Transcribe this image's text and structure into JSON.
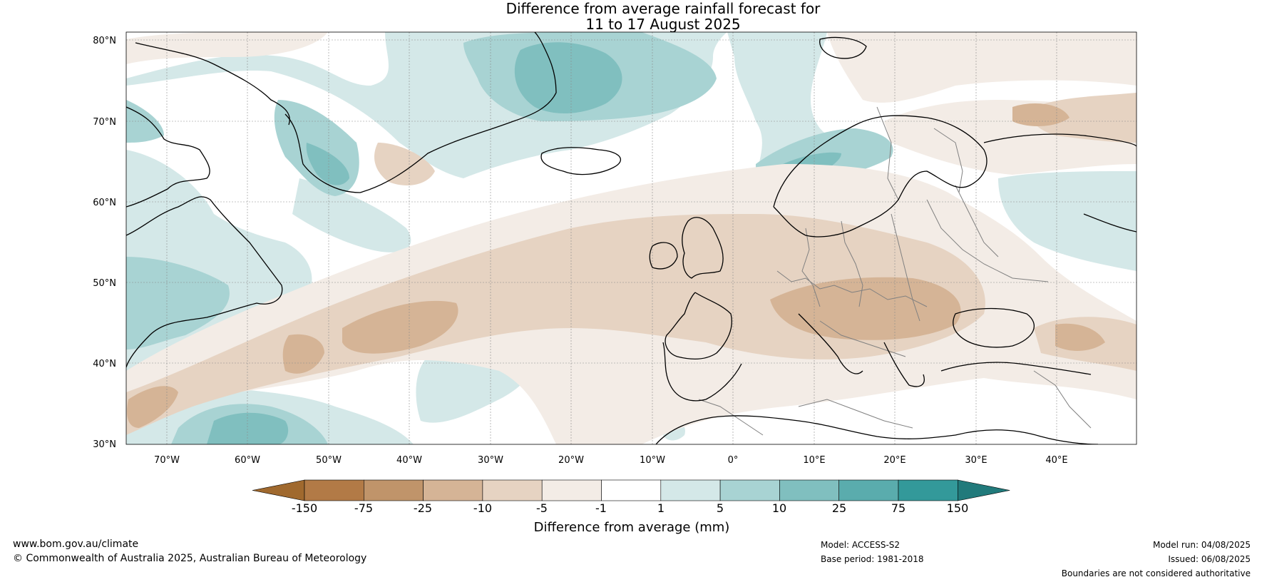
{
  "title": {
    "line1": "Difference from average rainfall forecast for",
    "line2": "11 to 17 August 2025"
  },
  "map": {
    "lat_labels": [
      "80°N",
      "70°N",
      "60°N",
      "50°N",
      "40°N",
      "30°N"
    ],
    "lon_labels": [
      "70°W",
      "60°W",
      "50°W",
      "40°W",
      "30°W",
      "20°W",
      "10°W",
      "0°",
      "10°E",
      "20°E",
      "30°E",
      "40°E"
    ],
    "coastline_color": "#000000",
    "border_color": "#808080"
  },
  "colorbar": {
    "title": "Difference from average (mm)",
    "ticks": [
      "-150",
      "-75",
      "-25",
      "-10",
      "-5",
      "-1",
      "1",
      "5",
      "10",
      "25",
      "75",
      "150"
    ],
    "colors": [
      "#a0692e",
      "#b27a46",
      "#c0946a",
      "#d5b496",
      "#e6d3c2",
      "#f3ece6",
      "#ffffff",
      "#d4e8e8",
      "#a8d3d3",
      "#80bfbf",
      "#5aacad",
      "#33999a",
      "#217a7b"
    ]
  },
  "footer": {
    "website": "www.bom.gov.au/climate",
    "copyright": "© Commonwealth of Australia 2025, Australian Bureau of Meteorology",
    "model": "Model: ACCESS-S2",
    "base_period": "Base period: 1981-2018",
    "model_run": "Model run: 04/08/2025",
    "issued": "Issued: 06/08/2025",
    "disclaimer": "Boundaries are not considered authoritative"
  }
}
